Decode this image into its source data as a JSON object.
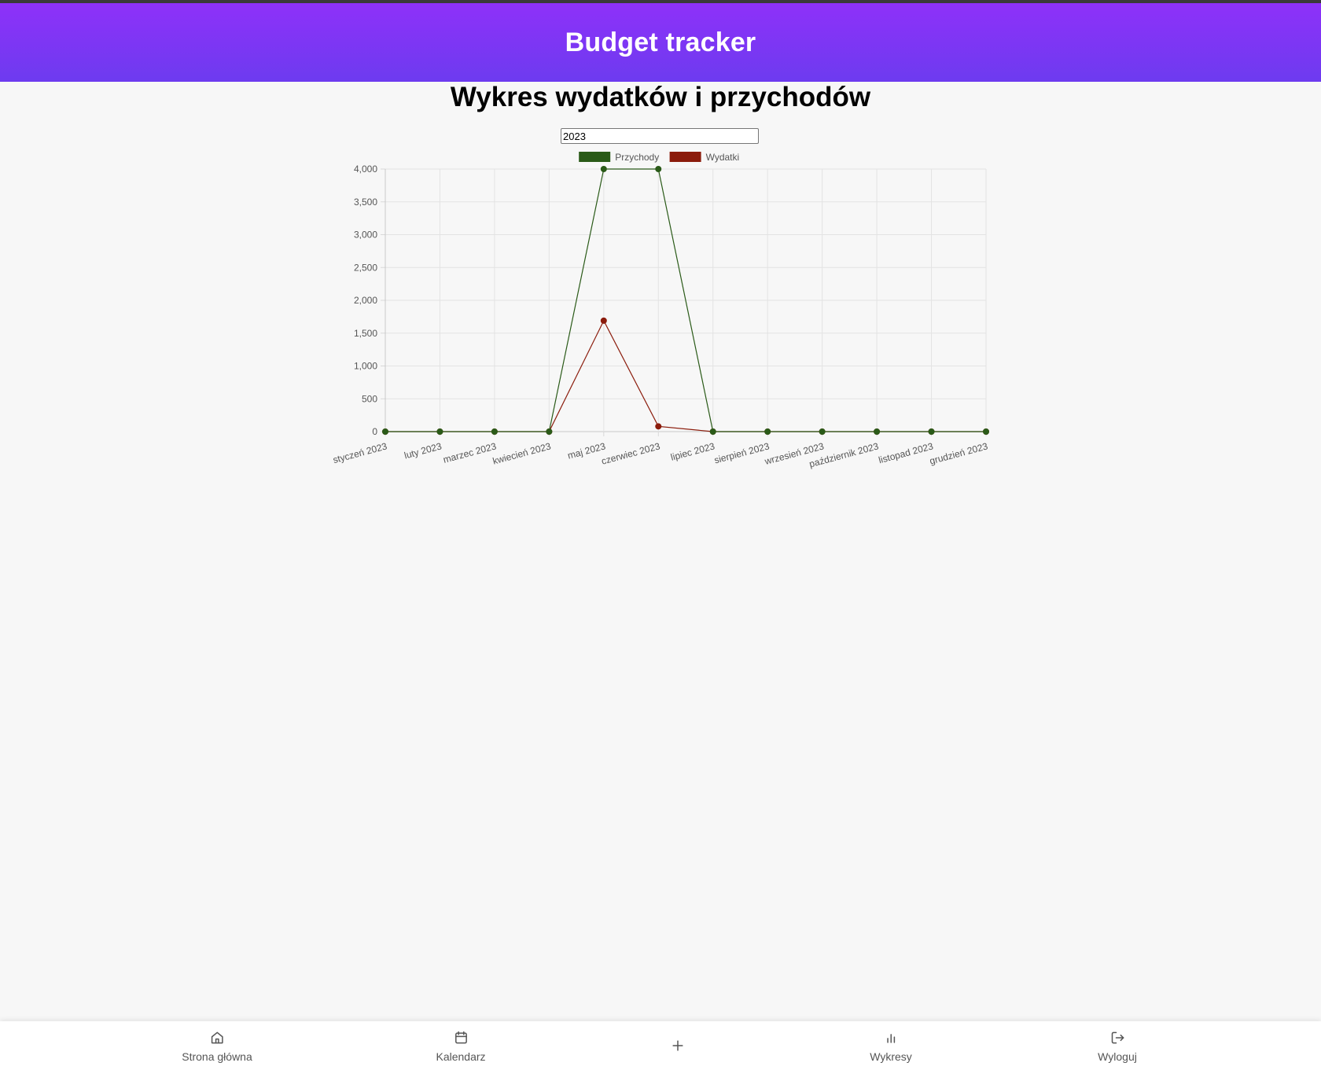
{
  "header": {
    "title": "Budget tracker"
  },
  "page": {
    "title": "Wykres wydatków i przychodów"
  },
  "year_input": {
    "value": "2023"
  },
  "chart_data": {
    "type": "line",
    "categories": [
      "styczeń 2023",
      "luty 2023",
      "marzec 2023",
      "kwiecień 2023",
      "maj 2023",
      "czerwiec 2023",
      "lipiec 2023",
      "sierpień 2023",
      "wrzesień 2023",
      "październik 2023",
      "listopad 2023",
      "grudzień 2023"
    ],
    "series": [
      {
        "name": "Przychody",
        "color": "#2a5a18",
        "values": [
          0,
          0,
          0,
          0,
          4000,
          4000,
          0,
          0,
          0,
          0,
          0,
          0
        ]
      },
      {
        "name": "Wydatki",
        "color": "#8b1c0c",
        "values": [
          0,
          0,
          0,
          0,
          1690,
          80,
          0,
          0,
          0,
          0,
          0,
          0
        ]
      }
    ],
    "ylim": [
      0,
      4000
    ],
    "yticks": [
      "0",
      "500",
      "1,000",
      "1,500",
      "2,000",
      "2,500",
      "3,000",
      "3,500",
      "4,000"
    ],
    "grid": true,
    "legend": "top"
  },
  "nav": {
    "items": [
      {
        "label": "Strona główna",
        "icon": "home-icon"
      },
      {
        "label": "Kalendarz",
        "icon": "calendar-icon"
      },
      {
        "label": "",
        "icon": "plus-icon"
      },
      {
        "label": "Wykresy",
        "icon": "bar-chart-icon"
      },
      {
        "label": "Wyloguj",
        "icon": "logout-icon"
      }
    ]
  }
}
